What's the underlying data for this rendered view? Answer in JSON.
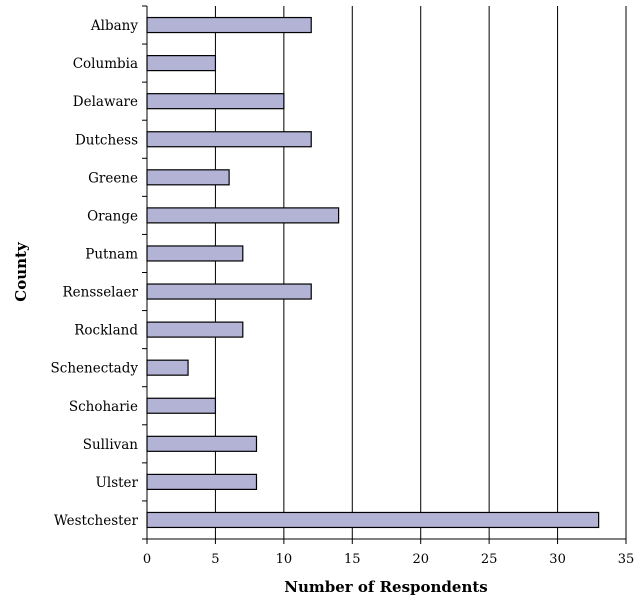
{
  "chart_data": {
    "type": "bar",
    "orientation": "horizontal",
    "categories": [
      "Albany",
      "Columbia",
      "Delaware",
      "Dutchess",
      "Greene",
      "Orange",
      "Putnam",
      "Rensselaer",
      "Rockland",
      "Schenectady",
      "Schoharie",
      "Sullivan",
      "Ulster",
      "Westchester"
    ],
    "values": [
      12,
      5,
      10,
      12,
      6,
      14,
      7,
      12,
      7,
      3,
      5,
      8,
      8,
      33
    ],
    "xlabel": "Number of Respondents",
    "ylabel": "County",
    "xlim": [
      0,
      35
    ],
    "xticks": [
      "0",
      "5",
      "10",
      "15",
      "20",
      "25",
      "30",
      "35"
    ],
    "grid": "vertical",
    "legend": "none",
    "bar_color": "#b3b3d6",
    "bar_border_color": "#000000"
  }
}
